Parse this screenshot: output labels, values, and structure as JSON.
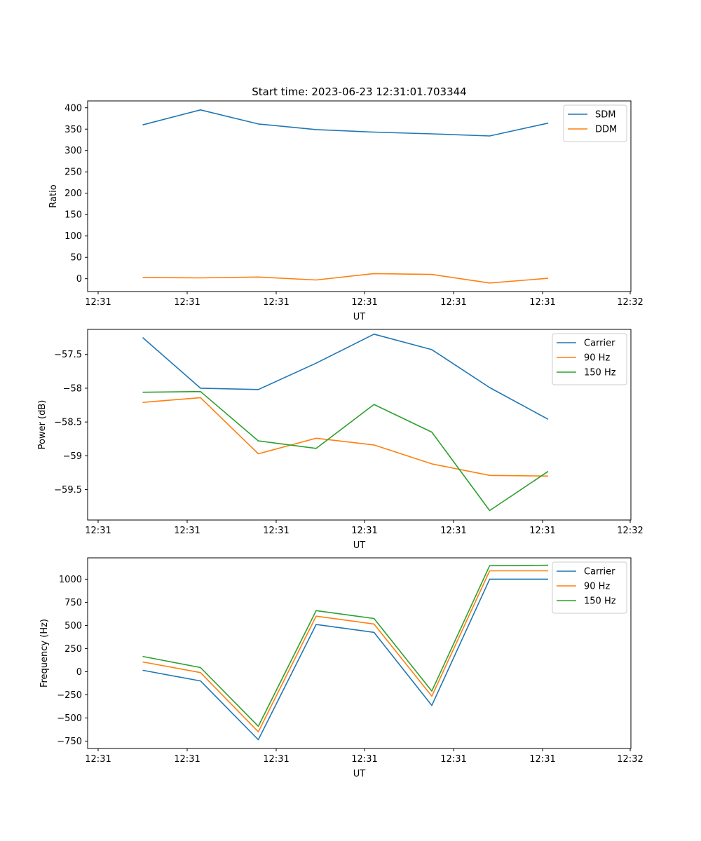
{
  "figure": {
    "title": "Start time: 2023-06-23 12:31:01.703344"
  },
  "chart_data": [
    {
      "type": "line",
      "xlabel": "UT",
      "ylabel": "Ratio",
      "x_ticks": [
        "12:31",
        "12:31",
        "12:31",
        "12:31",
        "12:31",
        "12:31",
        "12:32"
      ],
      "y_ticks": [
        0,
        50,
        100,
        150,
        200,
        250,
        300,
        350,
        400
      ],
      "ylim": [
        -30,
        416
      ],
      "grid": false,
      "legend": "top-right",
      "series": [
        {
          "name": "SDM",
          "color": "#1f77b4",
          "values": [
            360,
            395,
            362,
            349,
            343,
            339,
            334,
            364
          ]
        },
        {
          "name": "DDM",
          "color": "#ff7f0e",
          "values": [
            3,
            2,
            4,
            -3,
            12,
            10,
            -10,
            1
          ]
        }
      ]
    },
    {
      "type": "line",
      "xlabel": "UT",
      "ylabel": "Power (dB)",
      "x_ticks": [
        "12:31",
        "12:31",
        "12:31",
        "12:31",
        "12:31",
        "12:31",
        "12:32"
      ],
      "y_ticks": [
        -57.5,
        -58.0,
        -58.5,
        -59.0,
        -59.5
      ],
      "ylim": [
        -59.95,
        -57.13
      ],
      "grid": false,
      "legend": "top-right",
      "series": [
        {
          "name": "Carrier",
          "color": "#1f77b4",
          "values": [
            -57.25,
            -58.0,
            -58.02,
            -57.63,
            -57.2,
            -57.43,
            -57.99,
            -58.46
          ]
        },
        {
          "name": "90 Hz",
          "color": "#ff7f0e",
          "values": [
            -58.21,
            -58.14,
            -58.97,
            -58.74,
            -58.84,
            -59.12,
            -59.29,
            -59.3
          ]
        },
        {
          "name": "150 Hz",
          "color": "#2ca02c",
          "values": [
            -58.06,
            -58.05,
            -58.78,
            -58.89,
            -58.24,
            -58.65,
            -59.81,
            -59.23
          ]
        }
      ]
    },
    {
      "type": "line",
      "xlabel": "UT",
      "ylabel": "Frequency (Hz)",
      "x_ticks": [
        "12:31",
        "12:31",
        "12:31",
        "12:31",
        "12:31",
        "12:31",
        "12:32"
      ],
      "y_ticks": [
        1000,
        750,
        500,
        250,
        0,
        -250,
        -500,
        -750
      ],
      "ylim": [
        -830,
        1230
      ],
      "grid": false,
      "legend": "top-right",
      "series": [
        {
          "name": "Carrier",
          "color": "#1f77b4",
          "values": [
            15,
            -100,
            -735,
            510,
            425,
            -365,
            1000,
            1000
          ]
        },
        {
          "name": "90 Hz",
          "color": "#ff7f0e",
          "values": [
            105,
            -10,
            -650,
            600,
            515,
            -265,
            1090,
            1090
          ]
        },
        {
          "name": "150 Hz",
          "color": "#2ca02c",
          "values": [
            165,
            45,
            -590,
            660,
            575,
            -210,
            1145,
            1150
          ]
        }
      ]
    }
  ]
}
